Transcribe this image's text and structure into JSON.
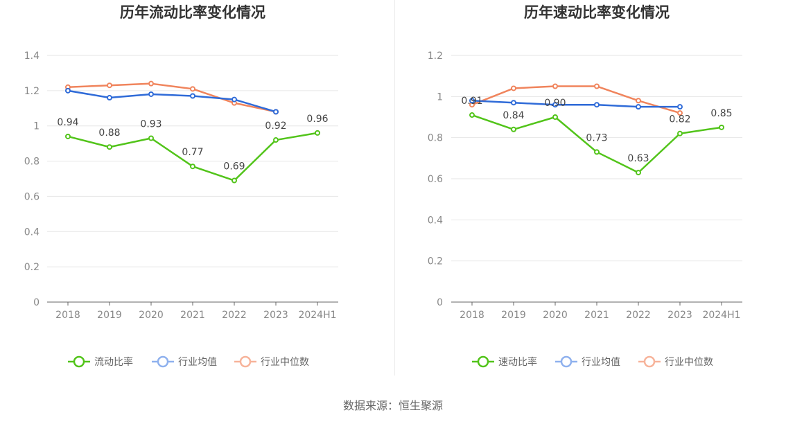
{
  "source_note": "数据来源：恒生聚源",
  "chart_data": [
    {
      "type": "line",
      "title": "历年流动比率变化情况",
      "categories": [
        "2018",
        "2019",
        "2020",
        "2021",
        "2022",
        "2023",
        "2024H1"
      ],
      "ylim": [
        0,
        1.4
      ],
      "yticks": [
        0,
        0.2,
        0.4,
        0.6,
        0.8,
        1,
        1.2,
        1.4
      ],
      "grid": true,
      "legend_position": "bottom",
      "series": [
        {
          "name": "流动比率",
          "color": "#52c41a",
          "values": [
            0.94,
            0.88,
            0.93,
            0.77,
            0.69,
            0.92,
            0.96
          ],
          "labels": true
        },
        {
          "name": "行业均值",
          "color": "#2f6bd8",
          "values": [
            1.2,
            1.16,
            1.18,
            1.17,
            1.15,
            1.08,
            null
          ],
          "labels": false
        },
        {
          "name": "行业中位数",
          "color": "#f0845c",
          "values": [
            1.22,
            1.23,
            1.24,
            1.21,
            1.13,
            1.08,
            null
          ],
          "labels": false
        }
      ],
      "legend_colors": [
        "#52c41a",
        "#8fb1ee",
        "#f7b39a"
      ]
    },
    {
      "type": "line",
      "title": "历年速动比率变化情况",
      "categories": [
        "2018",
        "2019",
        "2020",
        "2021",
        "2022",
        "2023",
        "2024H1"
      ],
      "ylim": [
        0,
        1.2
      ],
      "yticks": [
        0,
        0.2,
        0.4,
        0.6,
        0.8,
        1,
        1.2
      ],
      "grid": true,
      "legend_position": "bottom",
      "series": [
        {
          "name": "速动比率",
          "color": "#52c41a",
          "values": [
            0.91,
            0.84,
            0.9,
            0.73,
            0.63,
            0.82,
            0.85
          ],
          "labels": true
        },
        {
          "name": "行业均值",
          "color": "#2f6bd8",
          "values": [
            0.98,
            0.97,
            0.96,
            0.96,
            0.95,
            0.95,
            null
          ],
          "labels": false
        },
        {
          "name": "行业中位数",
          "color": "#f0845c",
          "values": [
            0.96,
            1.04,
            1.05,
            1.05,
            0.98,
            0.92,
            null
          ],
          "labels": false
        }
      ],
      "legend_colors": [
        "#52c41a",
        "#8fb1ee",
        "#f7b39a"
      ]
    }
  ]
}
